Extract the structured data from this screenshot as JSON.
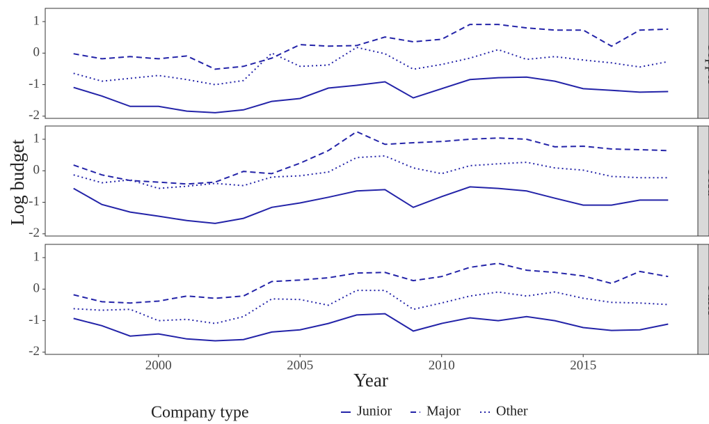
{
  "chart_data": {
    "type": "line",
    "x_label": "Year",
    "y_label": "Log budget",
    "legend_title": "Company type",
    "legend_position": "bottom",
    "grid": false,
    "x": [
      1997,
      1998,
      1999,
      2000,
      2001,
      2002,
      2003,
      2004,
      2005,
      2006,
      2007,
      2008,
      2009,
      2010,
      2011,
      2012,
      2013,
      2014,
      2015,
      2016,
      2017,
      2018
    ],
    "xlim": [
      1996,
      2019.05
    ],
    "xticks": [
      2000,
      2005,
      2010,
      2015
    ],
    "ylim": [
      -2.07,
      1.42
    ],
    "yticks": [
      -2,
      -1,
      0,
      1
    ],
    "facets": [
      {
        "label": "Copper",
        "series": [
          {
            "name": "Junior",
            "color": "#2323a8",
            "dash": "solid",
            "values": [
              -1.09,
              -1.36,
              -1.69,
              -1.69,
              -1.84,
              -1.89,
              -1.8,
              -1.53,
              -1.44,
              -1.11,
              -1.02,
              -0.91,
              -1.42,
              -1.13,
              -0.84,
              -0.78,
              -0.76,
              -0.89,
              -1.13,
              -1.18,
              -1.24,
              -1.22
            ]
          },
          {
            "name": "Major",
            "color": "#2323a8",
            "dash": "dashed",
            "values": [
              -0.02,
              -0.18,
              -0.11,
              -0.18,
              -0.09,
              -0.51,
              -0.42,
              -0.16,
              0.27,
              0.22,
              0.24,
              0.51,
              0.36,
              0.44,
              0.91,
              0.91,
              0.8,
              0.73,
              0.73,
              0.22,
              0.73,
              0.76
            ]
          },
          {
            "name": "Other",
            "color": "#2323a8",
            "dash": "dotted",
            "values": [
              -0.64,
              -0.89,
              -0.8,
              -0.71,
              -0.84,
              -1.0,
              -0.87,
              0.0,
              -0.42,
              -0.38,
              0.18,
              -0.02,
              -0.51,
              -0.36,
              -0.16,
              0.11,
              -0.2,
              -0.11,
              -0.22,
              -0.31,
              -0.44,
              -0.27
            ]
          }
        ]
      },
      {
        "label": "Gold",
        "series": [
          {
            "name": "Junior",
            "color": "#2323a8",
            "dash": "solid",
            "values": [
              -0.56,
              -1.07,
              -1.31,
              -1.44,
              -1.58,
              -1.67,
              -1.51,
              -1.16,
              -1.02,
              -0.84,
              -0.64,
              -0.6,
              -1.16,
              -0.82,
              -0.51,
              -0.56,
              -0.64,
              -0.87,
              -1.09,
              -1.09,
              -0.93,
              -0.93
            ]
          },
          {
            "name": "Major",
            "color": "#2323a8",
            "dash": "dashed",
            "values": [
              0.18,
              -0.13,
              -0.31,
              -0.36,
              -0.42,
              -0.36,
              -0.02,
              -0.09,
              0.24,
              0.64,
              1.24,
              0.84,
              0.89,
              0.93,
              1.0,
              1.04,
              1.0,
              0.76,
              0.78,
              0.69,
              0.67,
              0.64
            ]
          },
          {
            "name": "Other",
            "color": "#2323a8",
            "dash": "dotted",
            "values": [
              -0.13,
              -0.38,
              -0.29,
              -0.56,
              -0.49,
              -0.4,
              -0.47,
              -0.2,
              -0.16,
              -0.04,
              0.42,
              0.47,
              0.09,
              -0.09,
              0.16,
              0.22,
              0.27,
              0.09,
              0.02,
              -0.18,
              -0.22,
              -0.22
            ]
          }
        ]
      },
      {
        "label": "Other",
        "series": [
          {
            "name": "Junior",
            "color": "#2323a8",
            "dash": "solid",
            "values": [
              -0.93,
              -1.16,
              -1.49,
              -1.42,
              -1.58,
              -1.64,
              -1.6,
              -1.36,
              -1.29,
              -1.09,
              -0.82,
              -0.78,
              -1.33,
              -1.09,
              -0.91,
              -1.0,
              -0.87,
              -1.0,
              -1.22,
              -1.31,
              -1.29,
              -1.11
            ]
          },
          {
            "name": "Major",
            "color": "#2323a8",
            "dash": "dashed",
            "values": [
              -0.18,
              -0.4,
              -0.44,
              -0.38,
              -0.22,
              -0.29,
              -0.22,
              0.24,
              0.29,
              0.36,
              0.51,
              0.53,
              0.27,
              0.4,
              0.69,
              0.82,
              0.6,
              0.53,
              0.42,
              0.18,
              0.56,
              0.4
            ]
          },
          {
            "name": "Other",
            "color": "#2323a8",
            "dash": "dotted",
            "values": [
              -0.62,
              -0.67,
              -0.64,
              -1.0,
              -0.96,
              -1.09,
              -0.87,
              -0.31,
              -0.33,
              -0.51,
              -0.04,
              -0.04,
              -0.64,
              -0.44,
              -0.22,
              -0.09,
              -0.22,
              -0.09,
              -0.29,
              -0.42,
              -0.44,
              -0.49
            ]
          }
        ]
      }
    ]
  }
}
